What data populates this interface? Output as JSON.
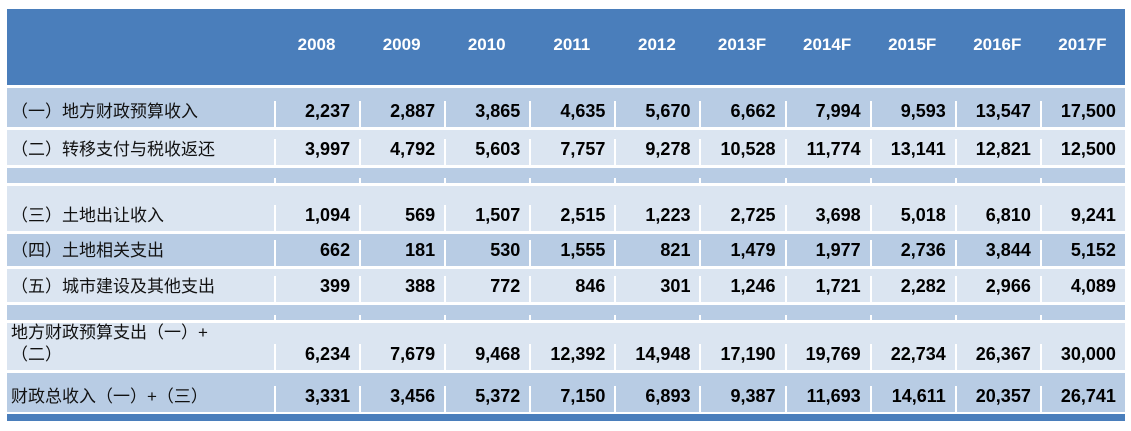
{
  "colors": {
    "header_bg": "#4a7ebb",
    "row_band_dark": "#b8cce4",
    "row_band_light": "#dbe5f1",
    "header_text": "#ffffff",
    "cell_text": "#000000",
    "bottom_border": "#4a7ebb"
  },
  "table": {
    "header": {
      "label": "",
      "years": [
        "2008",
        "2009",
        "2010",
        "2011",
        "2012",
        "2013F",
        "2014F",
        "2015F",
        "2016F",
        "2017F"
      ]
    },
    "rows": [
      {
        "label": "（一）地方财政预算收入",
        "band": "dark",
        "spacer": false,
        "values": [
          "2,237",
          "2,887",
          "3,865",
          "4,635",
          "5,670",
          "6,662",
          "7,994",
          "9,593",
          "13,547",
          "17,500"
        ]
      },
      {
        "label": "（二）转移支付与税收返还",
        "band": "light",
        "spacer": false,
        "values": [
          "3,997",
          "4,792",
          "5,603",
          "7,757",
          "9,278",
          "10,528",
          "11,774",
          "13,141",
          "12,821",
          "12,500"
        ]
      },
      {
        "label": "",
        "band": "dark",
        "spacer": true,
        "values": []
      },
      {
        "label": "（三）土地出让收入",
        "band": "light",
        "spacer": false,
        "values": [
          "1,094",
          "569",
          "1,507",
          "2,515",
          "1,223",
          "2,725",
          "3,698",
          "5,018",
          "6,810",
          "9,241"
        ]
      },
      {
        "label": "（四）土地相关支出",
        "band": "dark",
        "spacer": false,
        "values": [
          "662",
          "181",
          "530",
          "1,555",
          "821",
          "1,479",
          "1,977",
          "2,736",
          "3,844",
          "5,152"
        ]
      },
      {
        "label": "（五）城市建设及其他支出",
        "band": "light",
        "spacer": false,
        "values": [
          "399",
          "388",
          "772",
          "846",
          "301",
          "1,246",
          "1,721",
          "2,282",
          "2,966",
          "4,089"
        ]
      },
      {
        "label": "",
        "band": "dark",
        "spacer": true,
        "values": []
      },
      {
        "label": "地方财政预算支出（一）+\n（二）",
        "band": "light",
        "spacer": false,
        "values": [
          "6,234",
          "7,679",
          "9,468",
          "12,392",
          "14,948",
          "17,190",
          "19,769",
          "22,734",
          "26,367",
          "30,000"
        ]
      },
      {
        "label": "财政总收入（一）+（三）",
        "band": "dark",
        "spacer": false,
        "values": [
          "3,331",
          "3,456",
          "5,372",
          "7,150",
          "6,893",
          "9,387",
          "11,693",
          "14,611",
          "20,357",
          "26,741"
        ]
      }
    ]
  },
  "chart_data": {
    "type": "table",
    "title": "",
    "columns": [
      "2008",
      "2009",
      "2010",
      "2011",
      "2012",
      "2013F",
      "2014F",
      "2015F",
      "2016F",
      "2017F"
    ],
    "rows": [
      {
        "label": "（一）地方财政预算收入",
        "values": [
          2237,
          2887,
          3865,
          4635,
          5670,
          6662,
          7994,
          9593,
          13547,
          17500
        ]
      },
      {
        "label": "（二）转移支付与税收返还",
        "values": [
          3997,
          4792,
          5603,
          7757,
          9278,
          10528,
          11774,
          13141,
          12821,
          12500
        ]
      },
      {
        "label": "（三）土地出让收入",
        "values": [
          1094,
          569,
          1507,
          2515,
          1223,
          2725,
          3698,
          5018,
          6810,
          9241
        ]
      },
      {
        "label": "（四）土地相关支出",
        "values": [
          662,
          181,
          530,
          1555,
          821,
          1479,
          1977,
          2736,
          3844,
          5152
        ]
      },
      {
        "label": "（五）城市建设及其他支出",
        "values": [
          399,
          388,
          772,
          846,
          301,
          1246,
          1721,
          2282,
          2966,
          4089
        ]
      },
      {
        "label": "地方财政预算支出（一）+（二）",
        "values": [
          6234,
          7679,
          9468,
          12392,
          14948,
          17190,
          19769,
          22734,
          26367,
          30000
        ]
      },
      {
        "label": "财政总收入（一）+（三）",
        "values": [
          3331,
          3456,
          5372,
          7150,
          6893,
          9387,
          11693,
          14611,
          20357,
          26741
        ]
      }
    ],
    "layout_hints": {
      "forecast_columns": [
        "2013F",
        "2014F",
        "2015F",
        "2016F",
        "2017F"
      ],
      "grid": "white separators",
      "header_position": "top"
    }
  }
}
